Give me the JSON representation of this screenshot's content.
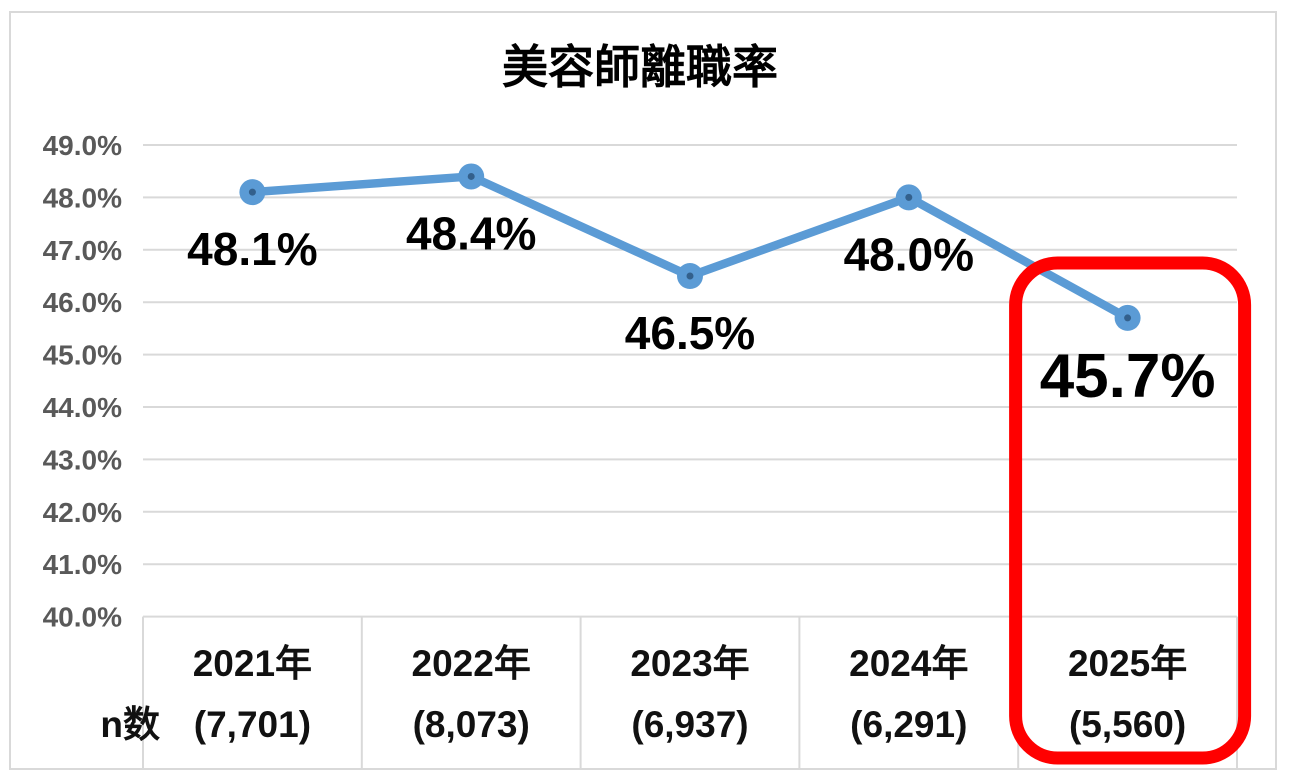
{
  "chart_data": {
    "type": "line",
    "title": "美容師離職率",
    "categories": [
      "2021年",
      "2022年",
      "2023年",
      "2024年",
      "2025年"
    ],
    "n_axis_label": "n数",
    "n_values": [
      "(7,701)",
      "(8,073)",
      "(6,937)",
      "(6,291)",
      "(5,560)"
    ],
    "series": [
      {
        "name": "美容師離職率",
        "values": [
          48.1,
          48.4,
          46.5,
          48.0,
          45.7
        ]
      }
    ],
    "data_labels": [
      "48.1%",
      "48.4%",
      "46.5%",
      "48.0%",
      "45.7%"
    ],
    "y_ticks": [
      "49.0%",
      "48.0%",
      "47.0%",
      "46.0%",
      "45.0%",
      "44.0%",
      "43.0%",
      "42.0%",
      "41.0%",
      "40.0%"
    ],
    "ylim": [
      40.0,
      49.0
    ],
    "grid": true,
    "legend": false,
    "highlight": {
      "category_index": 4,
      "note": "2025年 column outlined"
    },
    "colors": {
      "line": "#5b9bd5",
      "marker": "#5b9bd5",
      "marker_dot": "#33608c",
      "gridline": "#d9d9d9",
      "frame": "#d9d9d9",
      "y_tick_text": "#595959",
      "label_text": "#000000",
      "highlight_box": "#ff0000",
      "background": "#ffffff"
    }
  }
}
